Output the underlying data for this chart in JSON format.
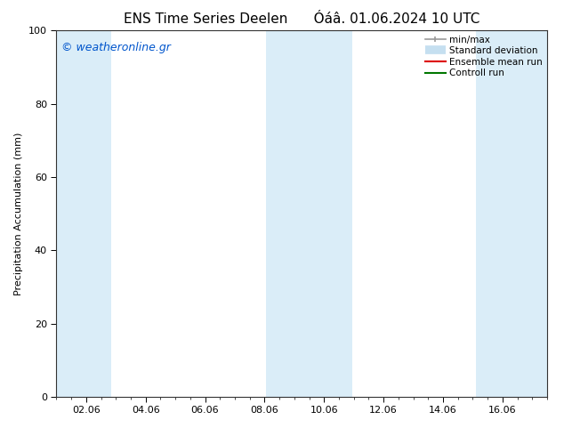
{
  "title": "ENS Time Series Deelen      Óáâ. 01.06.2024 10 UTC",
  "ylabel": "Precipitation Accumulation (mm)",
  "ylim": [
    0,
    100
  ],
  "xlim_start": 0.0,
  "xlim_end": 16.5,
  "xtick_labels": [
    "02.06",
    "04.06",
    "06.06",
    "08.06",
    "10.06",
    "12.06",
    "14.06",
    "16.06"
  ],
  "xtick_positions": [
    1,
    3,
    5,
    7,
    9,
    11,
    13,
    15
  ],
  "ytick_labels": [
    "0",
    "20",
    "40",
    "60",
    "80",
    "100"
  ],
  "ytick_positions": [
    0,
    20,
    40,
    60,
    80,
    100
  ],
  "background_color": "#ffffff",
  "plot_bg_color": "#ffffff",
  "shaded_columns": [
    {
      "x_start": 0.0,
      "x_end": 1.85,
      "color": "#daedf8"
    },
    {
      "x_start": 7.05,
      "x_end": 9.95,
      "color": "#daedf8"
    },
    {
      "x_start": 14.1,
      "x_end": 16.5,
      "color": "#daedf8"
    }
  ],
  "watermark_text": "© weatheronline.gr",
  "watermark_color": "#0055cc",
  "watermark_fontsize": 9,
  "legend_items": [
    {
      "label": "min/max",
      "color": "#999999",
      "lw": 1.2
    },
    {
      "label": "Standard deviation",
      "color": "#c5dff0",
      "lw": 7
    },
    {
      "label": "Ensemble mean run",
      "color": "#dd0000",
      "lw": 1.5
    },
    {
      "label": "Controll run",
      "color": "#007700",
      "lw": 1.5
    }
  ],
  "title_fontsize": 11,
  "axis_label_fontsize": 8,
  "tick_fontsize": 8,
  "legend_fontsize": 7.5
}
